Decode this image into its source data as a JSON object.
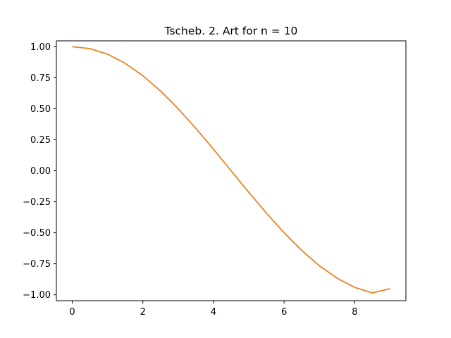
{
  "chart_data": {
    "type": "line",
    "title": "Tscheb. 2. Art for n = 10",
    "xlabel": "",
    "ylabel": "",
    "xlim": [
      -0.45,
      9.45
    ],
    "ylim": [
      -1.0475,
      1.0475
    ],
    "xticks": [
      0,
      2,
      4,
      6,
      8
    ],
    "xtick_labels": [
      "0",
      "2",
      "4",
      "6",
      "8"
    ],
    "yticks": [
      1.0,
      0.75,
      0.5,
      0.25,
      0.0,
      -0.25,
      -0.5,
      -0.75,
      -1.0
    ],
    "ytick_labels": [
      "1.00",
      "0.75",
      "0.50",
      "0.25",
      "0.00",
      "−0.25",
      "−0.50",
      "−0.75",
      "−1.00"
    ],
    "grid": false,
    "legend": "none",
    "series": [
      {
        "color": "#1f77b4",
        "x": [
          0,
          0.5,
          1,
          1.5,
          2,
          2.5,
          3,
          3.5,
          4,
          4.5,
          5,
          5.5,
          6,
          6.5,
          7,
          7.5,
          8,
          8.5,
          9
        ],
        "y": [
          1.0,
          0.985,
          0.94,
          0.866,
          0.766,
          0.643,
          0.5,
          0.342,
          0.174,
          0.0,
          -0.174,
          -0.342,
          -0.5,
          -0.643,
          -0.766,
          -0.866,
          -0.94,
          -0.985,
          -0.951
        ]
      },
      {
        "color": "#ff7f0e",
        "x": [
          0,
          0.5,
          1,
          1.5,
          2,
          2.5,
          3,
          3.5,
          4,
          4.5,
          5,
          5.5,
          6,
          6.5,
          7,
          7.5,
          8,
          8.5,
          9
        ],
        "y": [
          1.0,
          0.985,
          0.94,
          0.866,
          0.766,
          0.643,
          0.5,
          0.342,
          0.174,
          0.0,
          -0.174,
          -0.342,
          -0.5,
          -0.643,
          -0.766,
          -0.866,
          -0.94,
          -0.985,
          -0.951
        ]
      }
    ]
  }
}
